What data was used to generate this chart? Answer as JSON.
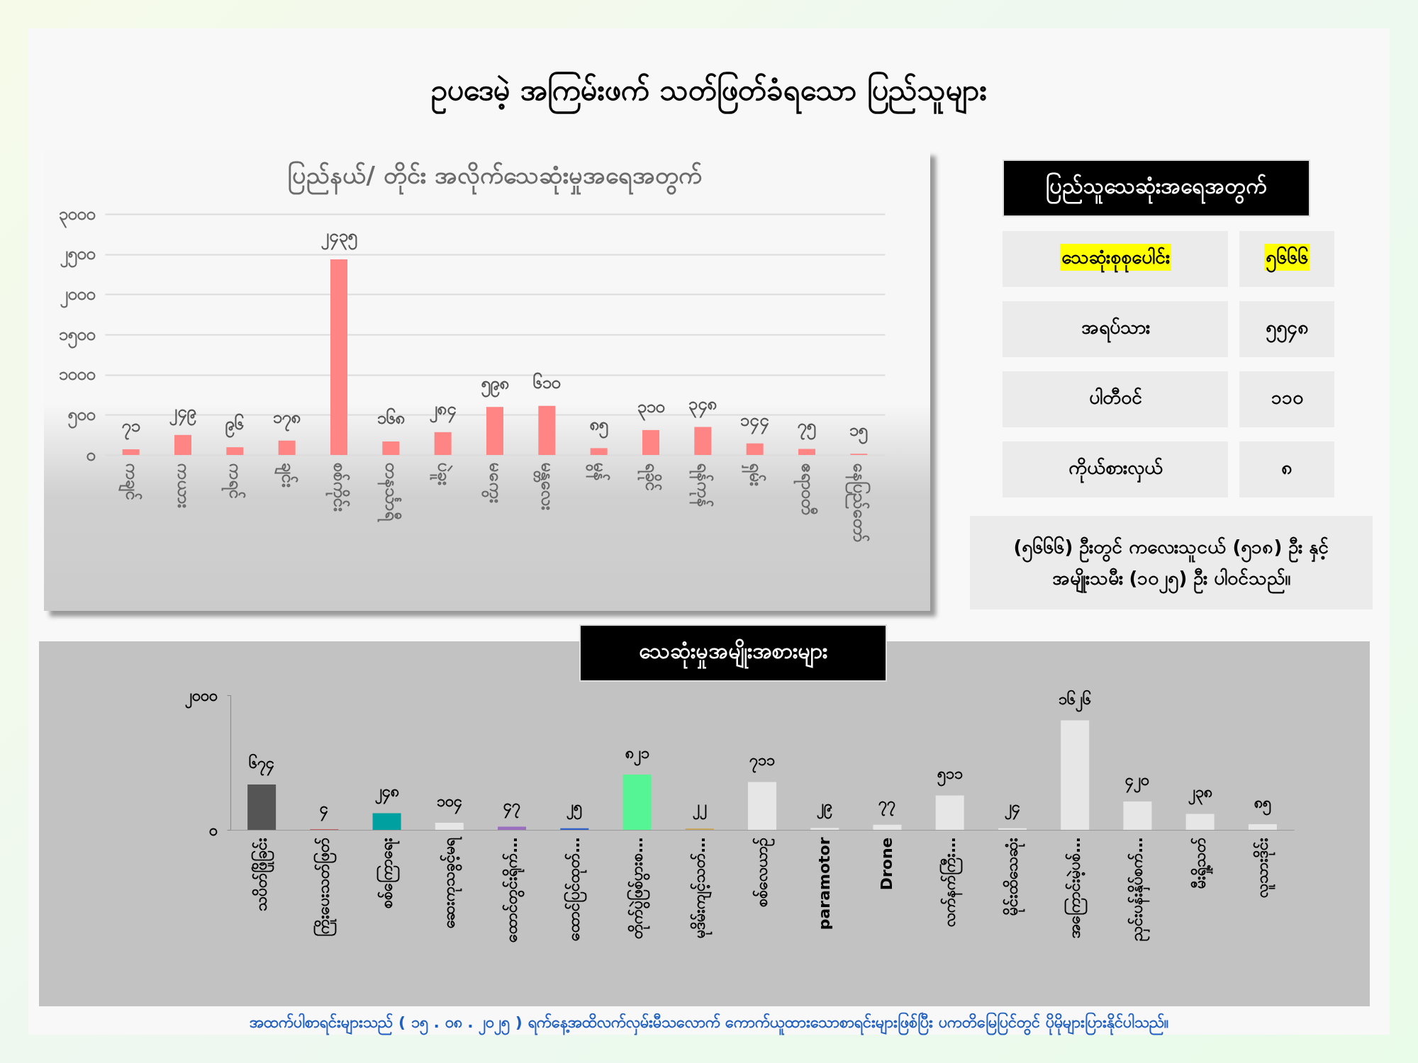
{
  "chart_data": [
    {
      "type": "other",
      "title": "ဥပဒေမဲ့ အကြမ်းဖက် သတ်ဖြတ်ခံရသော ပြည်သူများ"
    },
    {
      "type": "bar",
      "title": "ပြည်နယ်/ တိုင်း အလိုက်သေဆုံးမှုအရေအတွက်",
      "categories": [
        "ကချင်",
        "ကယား",
        "ကရင်",
        "ချင်း",
        "စစ်ကိုင်း",
        "တနင်္သာရီ",
        "ပဲခူး",
        "မကွေး",
        "မန္တလေး",
        "မွန်",
        "ရခိုင်",
        "ရန်ကုန်",
        "ရှမ်း",
        "ဧရာဝတီ",
        "နေပြည်တော်"
      ],
      "values": [
        71,
        249,
        96,
        178,
        2435,
        168,
        284,
        598,
        610,
        85,
        310,
        348,
        144,
        75,
        15
      ],
      "value_labels": [
        "၇၁",
        "၂၄၉",
        "၉၆",
        "၁၇၈",
        "၂၄၃၅",
        "၁၆၈",
        "၂၈၄",
        "၅၉၈",
        "၆၁၀",
        "၈၅",
        "၃၁၀",
        "၃၄၈",
        "၁၄၄",
        "၇၅",
        "၁၅"
      ],
      "color": "#ff8585",
      "ylim": [
        0,
        3000
      ],
      "yticks": [
        {
          "value": 0,
          "label": "၀"
        },
        {
          "value": 500,
          "label": "၅၀၀"
        },
        {
          "value": 1000,
          "label": "၁၀၀၀"
        },
        {
          "value": 1500,
          "label": "၁၅၀၀"
        },
        {
          "value": 2000,
          "label": "၂၀၀၀"
        },
        {
          "value": 2500,
          "label": "၂၅၀၀"
        },
        {
          "value": 3000,
          "label": "၃၀၀၀"
        }
      ],
      "grid": "y"
    },
    {
      "type": "other",
      "title": "ပြည်သူသေဆုံးအရေအတွက်",
      "categories": [
        "သေဆုံးစုစုပေါင်း",
        "အရပ်သား",
        "ပါတီဝင်",
        "ကိုယ်စားလှယ်"
      ],
      "value_labels": [
        "၅၆၆၆",
        "၅၅၄၈",
        "၁၁၀",
        "၈"
      ],
      "annotations": [
        "(၅၆၆၆) ဦးတွင် ကလေးသူငယ်  (၅၁၈) ဦး နှင့် အမျိုးသမီး (၁၀၂၅) ဦး ပါဝင်သည်။"
      ]
    },
    {
      "type": "bar",
      "title": "သေဆုံးမှုအမျိုးအစားများ",
      "categories": [
        "သပိတ်ဖြိုခြင်း",
        "ကြိုးပေးသတ်ဖြတ်",
        "စစ်ကြောရေး",
        "ဆေးကုသခွင့်မရ",
        "ထောင်တွင်းရိုက်…",
        "ထောင်ပြင်ထုတ်…",
        "တိုက်ပွဲဖြစ်ပွားစ…",
        "မုဒိမ်းကျင့်သတ်…",
        "စစ်လေယာဉ်",
        "paramotor",
        "Drone",
        "လက်နက်ကြီး…",
        "မိုင်းထိသေဆုံး",
        "အကြောင်းမဲ့ပစ်…",
        "ညှင်းပန်းနှိပ်စက်…",
        "မီးရှို့သတ်",
        "လူသားဒိုင်း"
      ],
      "values": [
        674,
        4,
        248,
        104,
        47,
        25,
        821,
        22,
        711,
        29,
        77,
        511,
        24,
        1626,
        420,
        238,
        85
      ],
      "value_labels": [
        "၆၇၄",
        "၄",
        "၂၄၈",
        "၁၀၄",
        "၄၇",
        "၂၅",
        "၈၂၁",
        "၂၂",
        "၇၁၁",
        "၂၉",
        "၇၇",
        "၅၁၁",
        "၂၄",
        "၁၆၂၆",
        "၄၂၀",
        "၂၃၈",
        "၈၅"
      ],
      "colors": [
        "#555555",
        "#c00000",
        "#00a0a0",
        "#e6e6e6",
        "#9b6fc0",
        "#3060c8",
        "#55f595",
        "#c8a860",
        "#e6e6e6",
        "#e6e6e6",
        "#e6e6e6",
        "#e6e6e6",
        "#e6e6e6",
        "#e6e6e6",
        "#e6e6e6",
        "#e6e6e6",
        "#e6e6e6"
      ],
      "ylim": [
        0,
        2000
      ],
      "yticks": [
        {
          "value": 0,
          "label": "၀"
        },
        {
          "value": 2000,
          "label": "၂၀၀၀"
        }
      ],
      "annotations": [
        "အထက်ပါစာရင်းများသည် ( ၁၅ . ၀၈ . ၂၀၂၅ ) ရက်နေ့အထိလက်လှမ်းမီသလောက် ကောက်ယူထားသောစာရင်းများဖြစ်ပြီး ပကတိမြေပြင်တွင် ပိုမိုများပြားနိုင်ပါသည်။"
      ]
    }
  ]
}
